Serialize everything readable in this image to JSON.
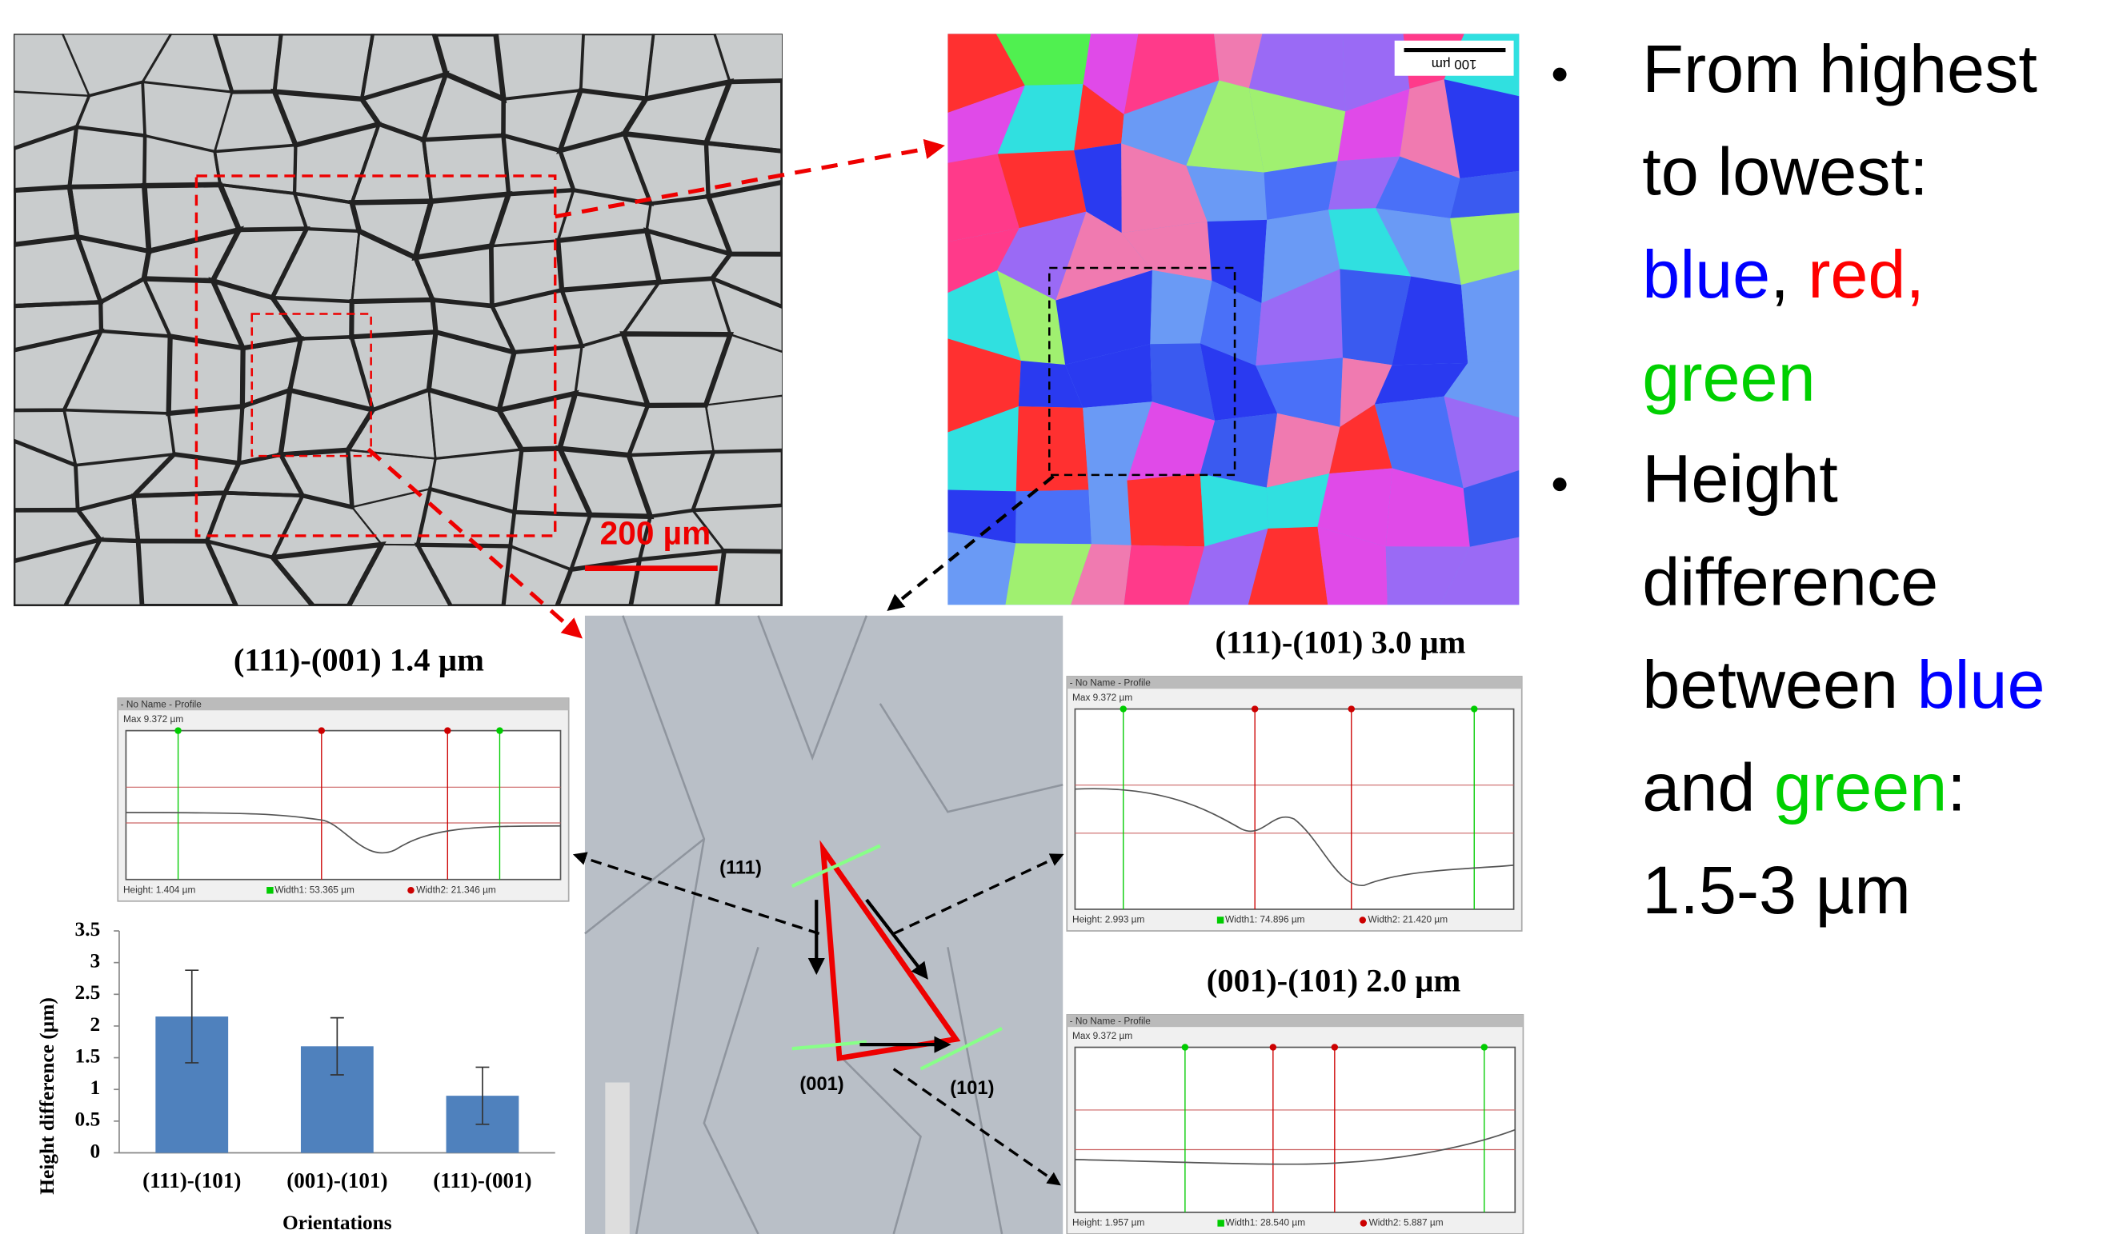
{
  "bullets": [
    {
      "lines": [
        [
          {
            "text": "From highest"
          }
        ],
        [
          {
            "text": "to lowest:"
          }
        ],
        [
          {
            "text": "blue",
            "color": "#0000ff"
          },
          {
            "text": ", "
          },
          {
            "text": "red,",
            "color": "#ff0000"
          }
        ],
        [
          {
            "text": "green",
            "color": "#00d000"
          }
        ]
      ]
    },
    {
      "lines": [
        [
          {
            "text": "Height"
          }
        ],
        [
          {
            "text": "difference"
          }
        ],
        [
          {
            "text": "between "
          },
          {
            "text": "blue",
            "color": "#0000ff"
          }
        ],
        [
          {
            "text": "and "
          },
          {
            "text": "green",
            "color": "#00d000"
          },
          {
            "text": ":"
          }
        ],
        [
          {
            "text": "1.5-3 µm"
          }
        ]
      ]
    }
  ],
  "micrograph": {
    "scale_label": "200 µm"
  },
  "ebsd_map": {
    "scale_label": "100 µm"
  },
  "center_image": {
    "labels": [
      "(111)",
      "(001)",
      "(101)"
    ]
  },
  "profiles": [
    {
      "title": "(111)-(001) 1.4 µm",
      "header": "- No Name - Profile",
      "max": "Max  9.372 µm",
      "height": "Height:  1.404 µm",
      "width1": "Width1:  53.365 µm",
      "width2": "Width2:  21.346 µm"
    },
    {
      "title": "(111)-(101) 3.0 µm",
      "header": "- No Name - Profile",
      "max": "Max  9.372 µm",
      "height": "Height:  2.993 µm",
      "width1": "Width1:  74.896 µm",
      "width2": "Width2:  21.420 µm"
    },
    {
      "title": "(001)-(101) 2.0 µm",
      "header": "- No Name - Profile",
      "max": "Max  9.372 µm",
      "height": "Height:  1.957 µm",
      "width1": "Width1:  28.540 µm",
      "width2": "Width2:  5.887 µm"
    }
  ],
  "chart_data": {
    "type": "bar",
    "categories": [
      "(111)-(101)",
      "(001)-(101)",
      "(111)-(001)"
    ],
    "values": [
      2.15,
      1.68,
      0.9
    ],
    "errors": [
      0.73,
      0.45,
      0.45
    ],
    "color": "#4f81bd",
    "ylim": [
      0,
      3.5
    ],
    "yticks": [
      0,
      0.5,
      1,
      1.5,
      2,
      2.5,
      3,
      3.5
    ],
    "xlabel": "Orientations",
    "ylabel": "Height difference (µm)"
  }
}
